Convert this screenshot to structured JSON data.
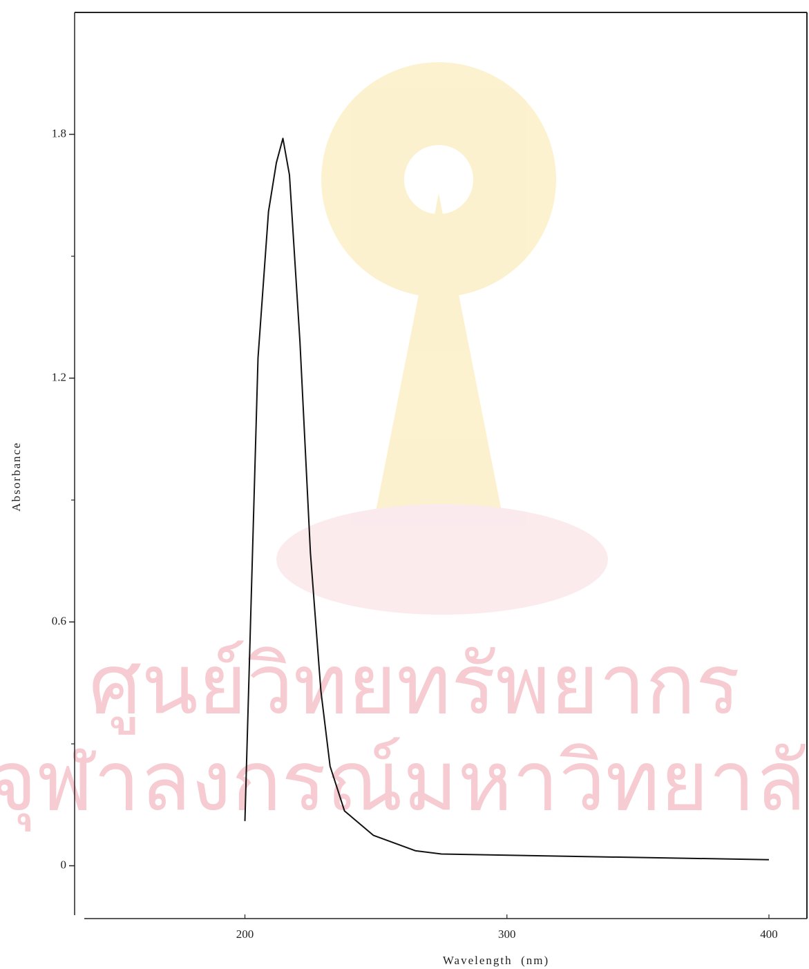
{
  "chart_data": {
    "type": "line",
    "y_label": "Absorbance",
    "x_label": "Wavelength  (nm)",
    "x": [
      200,
      205,
      209,
      212,
      214.5,
      217,
      221,
      225,
      229,
      232.5,
      238,
      249,
      265,
      275,
      317,
      400
    ],
    "series": [
      {
        "color": "#111111",
        "values": [
          0.11,
          1.25,
          1.61,
          1.73,
          1.79,
          1.7,
          1.29,
          0.77,
          0.43,
          0.245,
          0.135,
          0.075,
          0.037,
          0.029,
          0.024,
          0.015
        ]
      }
    ],
    "xlim": [
      135,
      414.5
    ],
    "xticks": [
      200,
      300,
      400
    ],
    "ylim": [
      -0.13,
      2.1
    ],
    "yticks": [
      0,
      0.6,
      1.2,
      1.8
    ],
    "minor_yticks": [
      0.3,
      0.9,
      1.5
    ],
    "grid": false
  },
  "watermark": {
    "lines": [
      "ศูนย์วิทยทรัพยากร",
      "จุฬาลงกรณ์มหาวิทยาลัย"
    ]
  }
}
